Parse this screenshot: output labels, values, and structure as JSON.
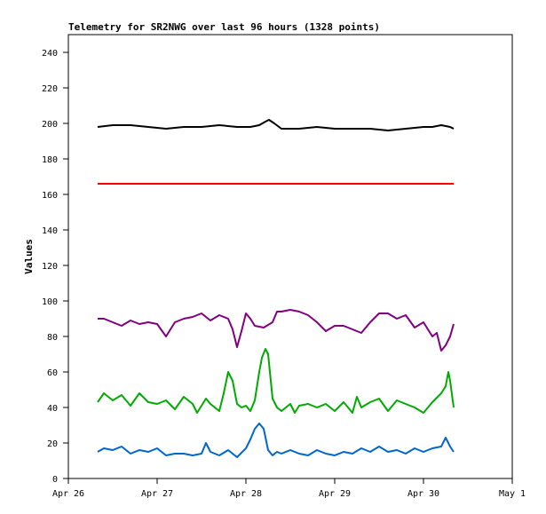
{
  "chart_data": {
    "type": "line",
    "title": "Telemetry for SR2NWG over last 96 hours (1328 points)",
    "ylabel": "Values",
    "xlabel": "",
    "ylim": [
      0,
      250
    ],
    "yticks": [
      0,
      20,
      40,
      60,
      80,
      100,
      120,
      140,
      160,
      180,
      200,
      220,
      240
    ],
    "xlim": [
      0,
      5
    ],
    "xticks": [
      {
        "x": 0,
        "label": "Apr 26"
      },
      {
        "x": 1,
        "label": "Apr 27"
      },
      {
        "x": 2,
        "label": "Apr 28"
      },
      {
        "x": 3,
        "label": "Apr 29"
      },
      {
        "x": 4,
        "label": "Apr 30"
      },
      {
        "x": 5,
        "label": "May 1"
      }
    ],
    "grid": false,
    "legend": "none",
    "series": [
      {
        "color": "#000000",
        "x": [
          0.33,
          0.5,
          0.7,
          0.9,
          1.1,
          1.3,
          1.5,
          1.7,
          1.9,
          2.05,
          2.15,
          2.22,
          2.26,
          2.32,
          2.4,
          2.6,
          2.8,
          3.0,
          3.2,
          3.4,
          3.6,
          3.8,
          4.0,
          4.1,
          4.2,
          4.3,
          4.34
        ],
        "values": [
          198,
          199,
          199,
          198,
          197,
          198,
          198,
          199,
          198,
          198,
          199,
          201,
          202,
          200,
          197,
          197,
          198,
          197,
          197,
          197,
          196,
          197,
          198,
          198,
          199,
          198,
          197
        ]
      },
      {
        "color": "#ff0000",
        "x": [
          0.33,
          0.6,
          0.9,
          1.2,
          1.5,
          1.8,
          2.1,
          2.4,
          2.7,
          3.0,
          3.3,
          3.6,
          3.9,
          4.2,
          4.34
        ],
        "values": [
          166,
          166,
          166,
          166,
          166,
          166,
          166,
          166,
          166,
          166,
          166,
          166,
          166,
          166,
          166
        ]
      },
      {
        "color": "#800080",
        "x": [
          0.33,
          0.4,
          0.5,
          0.6,
          0.7,
          0.8,
          0.9,
          1.0,
          1.1,
          1.15,
          1.2,
          1.3,
          1.4,
          1.5,
          1.6,
          1.7,
          1.8,
          1.85,
          1.9,
          1.95,
          2.0,
          2.05,
          2.1,
          2.2,
          2.3,
          2.35,
          2.4,
          2.5,
          2.6,
          2.7,
          2.8,
          2.9,
          3.0,
          3.1,
          3.2,
          3.3,
          3.4,
          3.5,
          3.6,
          3.7,
          3.8,
          3.9,
          4.0,
          4.1,
          4.15,
          4.2,
          4.25,
          4.3,
          4.34
        ],
        "values": [
          90,
          90,
          88,
          86,
          89,
          87,
          88,
          87,
          80,
          84,
          88,
          90,
          91,
          93,
          89,
          92,
          90,
          84,
          74,
          83,
          93,
          90,
          86,
          85,
          88,
          94,
          94,
          95,
          94,
          92,
          88,
          83,
          86,
          86,
          84,
          82,
          88,
          93,
          93,
          90,
          92,
          85,
          88,
          80,
          82,
          72,
          75,
          80,
          87
        ]
      },
      {
        "color": "#00aa00",
        "x": [
          0.33,
          0.4,
          0.5,
          0.6,
          0.7,
          0.8,
          0.9,
          1.0,
          1.1,
          1.2,
          1.3,
          1.4,
          1.45,
          1.5,
          1.55,
          1.6,
          1.7,
          1.75,
          1.8,
          1.85,
          1.9,
          1.95,
          2.0,
          2.05,
          2.1,
          2.15,
          2.18,
          2.22,
          2.25,
          2.3,
          2.35,
          2.4,
          2.5,
          2.55,
          2.6,
          2.7,
          2.8,
          2.9,
          3.0,
          3.1,
          3.2,
          3.25,
          3.3,
          3.4,
          3.5,
          3.6,
          3.7,
          3.8,
          3.9,
          4.0,
          4.1,
          4.2,
          4.25,
          4.28,
          4.3,
          4.34
        ],
        "values": [
          43,
          48,
          44,
          47,
          41,
          48,
          43,
          42,
          44,
          39,
          46,
          42,
          37,
          41,
          45,
          42,
          38,
          48,
          60,
          55,
          42,
          40,
          41,
          38,
          44,
          60,
          68,
          73,
          70,
          45,
          40,
          38,
          42,
          37,
          41,
          42,
          40,
          42,
          38,
          43,
          37,
          46,
          40,
          43,
          45,
          38,
          44,
          42,
          40,
          37,
          43,
          48,
          52,
          60,
          55,
          40
        ]
      },
      {
        "color": "#0066cc",
        "x": [
          0.33,
          0.4,
          0.5,
          0.6,
          0.7,
          0.8,
          0.9,
          1.0,
          1.1,
          1.2,
          1.3,
          1.4,
          1.5,
          1.55,
          1.6,
          1.7,
          1.8,
          1.9,
          2.0,
          2.05,
          2.1,
          2.15,
          2.2,
          2.25,
          2.3,
          2.35,
          2.4,
          2.5,
          2.6,
          2.7,
          2.8,
          2.9,
          3.0,
          3.1,
          3.2,
          3.3,
          3.4,
          3.5,
          3.6,
          3.7,
          3.8,
          3.9,
          4.0,
          4.1,
          4.2,
          4.25,
          4.3,
          4.34
        ],
        "values": [
          15,
          17,
          16,
          18,
          14,
          16,
          15,
          17,
          13,
          14,
          14,
          13,
          14,
          20,
          15,
          13,
          16,
          12,
          17,
          22,
          28,
          31,
          28,
          16,
          13,
          15,
          14,
          16,
          14,
          13,
          16,
          14,
          13,
          15,
          14,
          17,
          15,
          18,
          15,
          16,
          14,
          17,
          15,
          17,
          18,
          23,
          18,
          15
        ]
      }
    ]
  }
}
